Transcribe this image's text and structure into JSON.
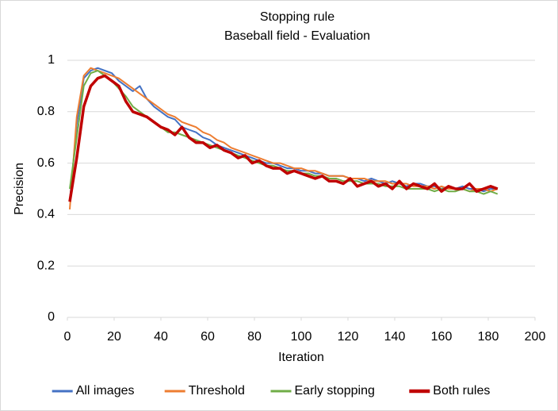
{
  "chart_data": {
    "type": "line",
    "title": "Stopping rule",
    "subtitle": "Baseball field - Evaluation",
    "x_label": "Iteration",
    "y_label": "Precision",
    "x": [
      1,
      4,
      7,
      10,
      13,
      16,
      19,
      22,
      25,
      28,
      31,
      34,
      37,
      40,
      43,
      46,
      49,
      52,
      55,
      58,
      61,
      64,
      67,
      70,
      73,
      76,
      79,
      82,
      85,
      88,
      91,
      94,
      97,
      100,
      103,
      106,
      109,
      112,
      115,
      118,
      121,
      124,
      127,
      130,
      133,
      136,
      139,
      142,
      145,
      148,
      151,
      154,
      157,
      160,
      163,
      166,
      169,
      172,
      175,
      178,
      181,
      184
    ],
    "series": [
      {
        "name": "All images",
        "color": "#4472c4",
        "width": 2,
        "values": [
          0.45,
          0.75,
          0.93,
          0.96,
          0.97,
          0.96,
          0.95,
          0.92,
          0.9,
          0.88,
          0.9,
          0.85,
          0.82,
          0.8,
          0.78,
          0.77,
          0.74,
          0.73,
          0.72,
          0.7,
          0.69,
          0.67,
          0.66,
          0.65,
          0.64,
          0.63,
          0.62,
          0.61,
          0.6,
          0.6,
          0.59,
          0.58,
          0.58,
          0.57,
          0.57,
          0.56,
          0.56,
          0.55,
          0.55,
          0.55,
          0.54,
          0.54,
          0.53,
          0.54,
          0.53,
          0.52,
          0.53,
          0.52,
          0.51,
          0.52,
          0.52,
          0.51,
          0.51,
          0.5,
          0.51,
          0.5,
          0.51,
          0.5,
          0.5,
          0.49,
          0.5,
          0.5
        ]
      },
      {
        "name": "Threshold",
        "color": "#ed7d31",
        "width": 2,
        "values": [
          0.42,
          0.78,
          0.94,
          0.97,
          0.96,
          0.95,
          0.94,
          0.93,
          0.91,
          0.89,
          0.87,
          0.85,
          0.83,
          0.81,
          0.79,
          0.78,
          0.76,
          0.75,
          0.74,
          0.72,
          0.71,
          0.69,
          0.68,
          0.66,
          0.65,
          0.64,
          0.63,
          0.62,
          0.61,
          0.6,
          0.6,
          0.59,
          0.58,
          0.58,
          0.57,
          0.57,
          0.56,
          0.55,
          0.55,
          0.55,
          0.54,
          0.54,
          0.54,
          0.53,
          0.53,
          0.53,
          0.52,
          0.52,
          0.52,
          0.51,
          0.51,
          0.51,
          0.5,
          0.51,
          0.5,
          0.5,
          0.5,
          0.49,
          0.5,
          0.5,
          0.49,
          0.5
        ]
      },
      {
        "name": "Early stopping",
        "color": "#70ad47",
        "width": 2,
        "values": [
          0.5,
          0.7,
          0.9,
          0.95,
          0.96,
          0.94,
          0.92,
          0.89,
          0.86,
          0.82,
          0.8,
          0.78,
          0.76,
          0.74,
          0.72,
          0.72,
          0.71,
          0.7,
          0.69,
          0.68,
          0.67,
          0.66,
          0.65,
          0.64,
          0.63,
          0.62,
          0.61,
          0.6,
          0.59,
          0.59,
          0.58,
          0.57,
          0.57,
          0.56,
          0.56,
          0.55,
          0.55,
          0.54,
          0.54,
          0.53,
          0.53,
          0.53,
          0.52,
          0.52,
          0.52,
          0.51,
          0.51,
          0.51,
          0.5,
          0.5,
          0.5,
          0.5,
          0.49,
          0.5,
          0.49,
          0.49,
          0.5,
          0.49,
          0.49,
          0.48,
          0.49,
          0.48
        ]
      },
      {
        "name": "Both rules",
        "color": "#c00000",
        "width": 3.5,
        "values": [
          0.45,
          0.62,
          0.82,
          0.9,
          0.93,
          0.94,
          0.92,
          0.9,
          0.84,
          0.8,
          0.79,
          0.78,
          0.76,
          0.74,
          0.73,
          0.71,
          0.74,
          0.7,
          0.68,
          0.68,
          0.66,
          0.67,
          0.65,
          0.64,
          0.62,
          0.63,
          0.6,
          0.61,
          0.59,
          0.58,
          0.58,
          0.56,
          0.57,
          0.56,
          0.55,
          0.54,
          0.55,
          0.53,
          0.53,
          0.52,
          0.54,
          0.51,
          0.52,
          0.53,
          0.51,
          0.52,
          0.5,
          0.53,
          0.5,
          0.52,
          0.51,
          0.5,
          0.52,
          0.49,
          0.51,
          0.5,
          0.5,
          0.52,
          0.49,
          0.5,
          0.51,
          0.5
        ]
      }
    ],
    "xlim": [
      0,
      200
    ],
    "xticks": [
      0,
      20,
      40,
      60,
      80,
      100,
      120,
      140,
      160,
      180,
      200
    ],
    "ylim": [
      0,
      1
    ],
    "yticks": [
      0,
      0.2,
      0.4,
      0.6,
      0.8,
      1
    ],
    "grid": true,
    "legend": "bottom"
  }
}
